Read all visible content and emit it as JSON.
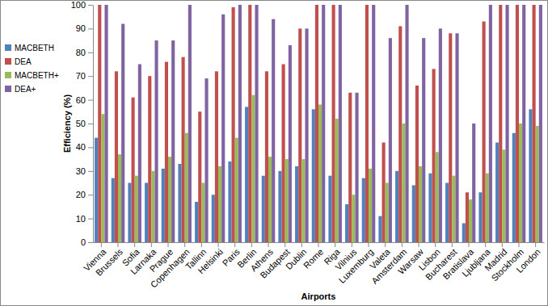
{
  "chart_data": {
    "type": "bar",
    "x_label": "Airports",
    "y_label": "Efficiency (%)",
    "categories": [
      "Vienna",
      "Brussels",
      "Sofia",
      "Larnaka",
      "Prague",
      "Copenhagen",
      "Tallinn",
      "Helsinki",
      "Paris",
      "Berlin",
      "Athens",
      "Budapest",
      "Dublin",
      "Rome",
      "Riga",
      "Vilnius",
      "Luxemburg",
      "Valeta",
      "Amsterdam",
      "Warsaw",
      "Lisbon",
      "Bucharest",
      "Bratislava",
      "Ljubljana",
      "Madrid",
      "Stockholm",
      "London"
    ],
    "series": [
      {
        "name": "MACBETH",
        "color": "#4f81bd",
        "values": [
          44,
          27,
          25,
          25,
          31,
          33,
          17,
          20,
          34,
          57,
          28,
          30,
          32,
          56,
          28,
          16,
          27,
          11,
          30,
          24,
          29,
          25,
          8,
          21,
          42,
          46,
          56
        ]
      },
      {
        "name": "DEA",
        "color": "#c0504d",
        "values": [
          100,
          72,
          61,
          70,
          76,
          78,
          55,
          72,
          99,
          100,
          72,
          75,
          90,
          100,
          100,
          63,
          100,
          42,
          91,
          66,
          73,
          88,
          21,
          93,
          100,
          100,
          100
        ]
      },
      {
        "name": "MACBETH+",
        "color": "#9bbb59",
        "values": [
          54,
          37,
          28,
          30,
          36,
          46,
          25,
          32,
          44,
          62,
          36,
          35,
          35,
          58,
          52,
          20,
          31,
          25,
          50,
          32,
          38,
          28,
          18,
          29,
          39,
          50,
          49
        ]
      },
      {
        "name": "DEA+",
        "color": "#8064a2",
        "values": [
          100,
          92,
          75,
          85,
          85,
          100,
          69,
          96,
          100,
          100,
          94,
          83,
          90,
          100,
          100,
          63,
          100,
          86,
          100,
          86,
          90,
          88,
          50,
          100,
          100,
          100,
          100
        ]
      }
    ],
    "ylim": [
      0,
      100
    ],
    "yticks": [
      0,
      10,
      20,
      30,
      40,
      50,
      60,
      70,
      80,
      90,
      100
    ],
    "grid": false,
    "legend": "left"
  }
}
